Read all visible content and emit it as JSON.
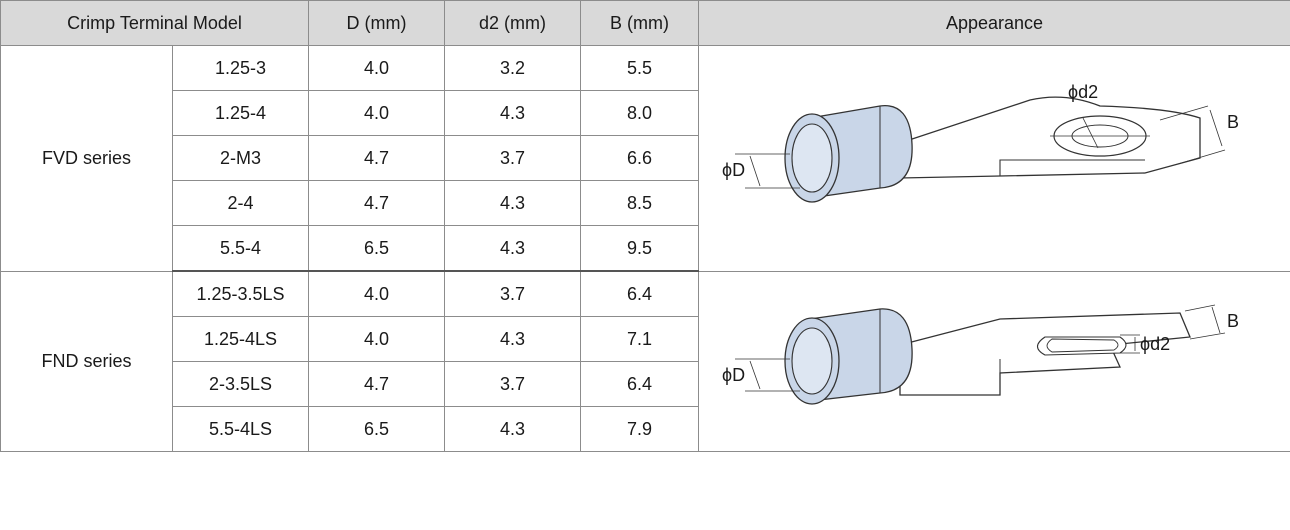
{
  "headers": {
    "model": "Crimp Terminal Model",
    "D": "D (mm)",
    "d2": "d2 (mm)",
    "B": "B (mm)",
    "appearance": "Appearance"
  },
  "groups": [
    {
      "series": "FVD series",
      "rows": [
        {
          "model": "1.25-3",
          "D": "4.0",
          "d2": "3.2",
          "B": "5.5"
        },
        {
          "model": "1.25-4",
          "D": "4.0",
          "d2": "4.3",
          "B": "8.0"
        },
        {
          "model": "2-M3",
          "D": "4.7",
          "d2": "3.7",
          "B": "6.6"
        },
        {
          "model": "2-4",
          "D": "4.7",
          "d2": "4.3",
          "B": "8.5"
        },
        {
          "model": "5.5-4",
          "D": "6.5",
          "d2": "4.3",
          "B": "9.5"
        }
      ],
      "figure": {
        "label_d2": "ϕd2",
        "label_B": "B",
        "label_D": "ϕD"
      }
    },
    {
      "series": "FND series",
      "rows": [
        {
          "model": "1.25-3.5LS",
          "D": "4.0",
          "d2": "3.7",
          "B": "6.4"
        },
        {
          "model": "1.25-4LS",
          "D": "4.0",
          "d2": "4.3",
          "B": "7.1"
        },
        {
          "model": "2-3.5LS",
          "D": "4.7",
          "d2": "3.7",
          "B": "6.4"
        },
        {
          "model": "5.5-4LS",
          "D": "6.5",
          "d2": "4.3",
          "B": "7.9"
        }
      ],
      "figure": {
        "label_d2": "ϕd2",
        "label_B": "B",
        "label_D": "ϕD"
      }
    }
  ],
  "colors": {
    "header_bg": "#d9d9d9",
    "sleeve_fill": "#c9d6e8",
    "border": "#8c8c8c"
  }
}
